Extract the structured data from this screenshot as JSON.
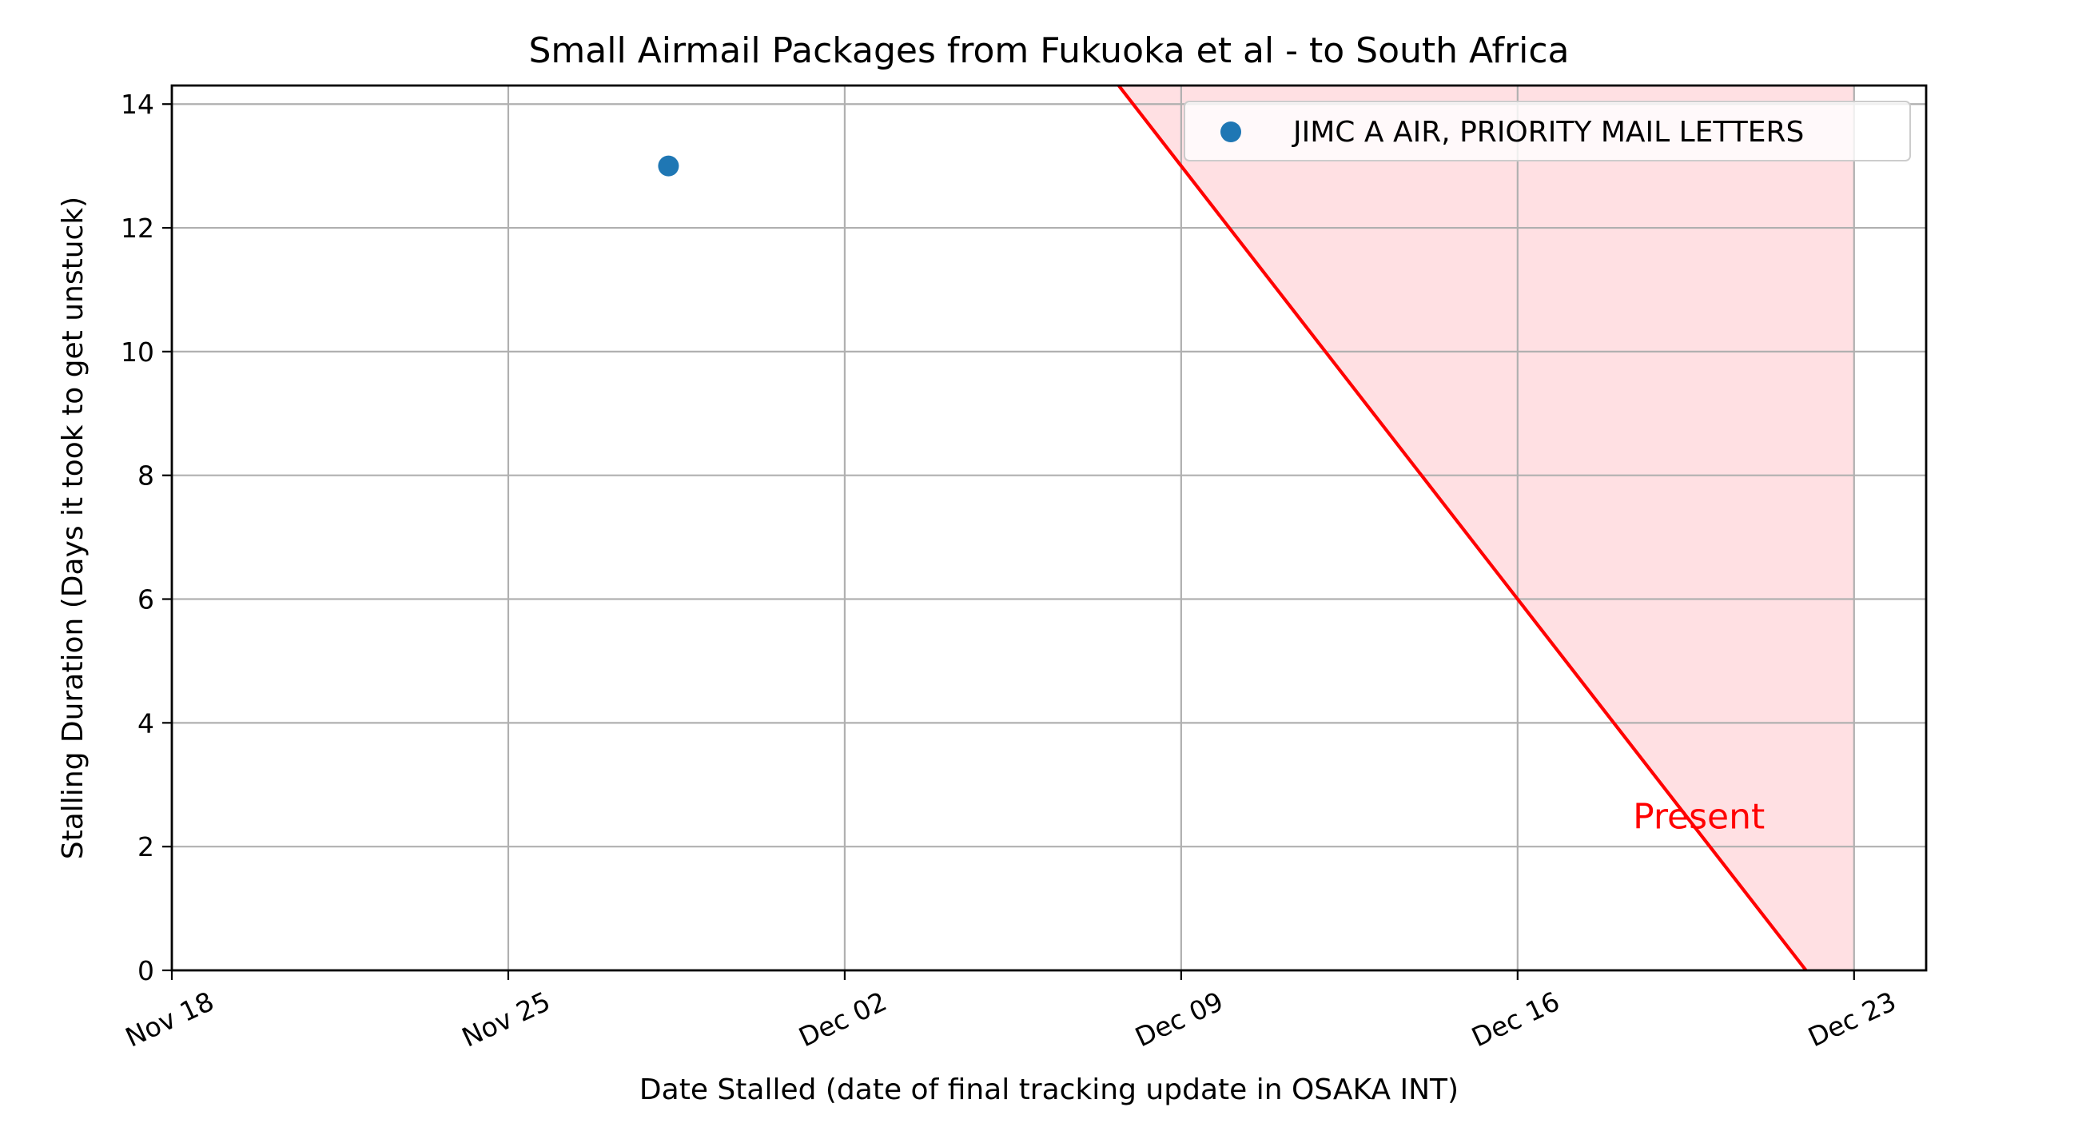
{
  "chart_data": {
    "type": "scatter",
    "title": "Small Airmail Packages from Fukuoka et al - to South Africa",
    "xlabel": "Date Stalled (date of final tracking update in OSAKA INT)",
    "ylabel": "Stalling Duration (Days it took to get unstuck)",
    "x_axis": {
      "kind": "date",
      "range": [
        "2023-11-18",
        "2023-12-24T12:00"
      ],
      "ticks": [
        "2023-11-18",
        "2023-11-25",
        "2023-12-02",
        "2023-12-09",
        "2023-12-16",
        "2023-12-23"
      ],
      "tick_labels": [
        "Nov 18",
        "Nov 25",
        "Dec 02",
        "Dec 09",
        "Dec 16",
        "Dec 23"
      ]
    },
    "y_axis": {
      "range": [
        0,
        14.3
      ],
      "ticks": [
        0,
        2,
        4,
        6,
        8,
        10,
        12,
        14
      ],
      "tick_labels": [
        "0",
        "2",
        "4",
        "6",
        "8",
        "10",
        "12",
        "14"
      ]
    },
    "grid": true,
    "legend_position": "top-right",
    "series": [
      {
        "name": "JIMC A AIR, PRIORITY MAIL LETTERS",
        "color": "#1f77b4",
        "points": [
          {
            "x": "2023-11-28T08:00",
            "y": 13
          }
        ]
      }
    ],
    "present_line": {
      "label": "Present",
      "date": "2023-12-22",
      "color": "#ff0000",
      "fill_color": "#ffe0e3",
      "description": "y = days from date stalled until present"
    }
  }
}
